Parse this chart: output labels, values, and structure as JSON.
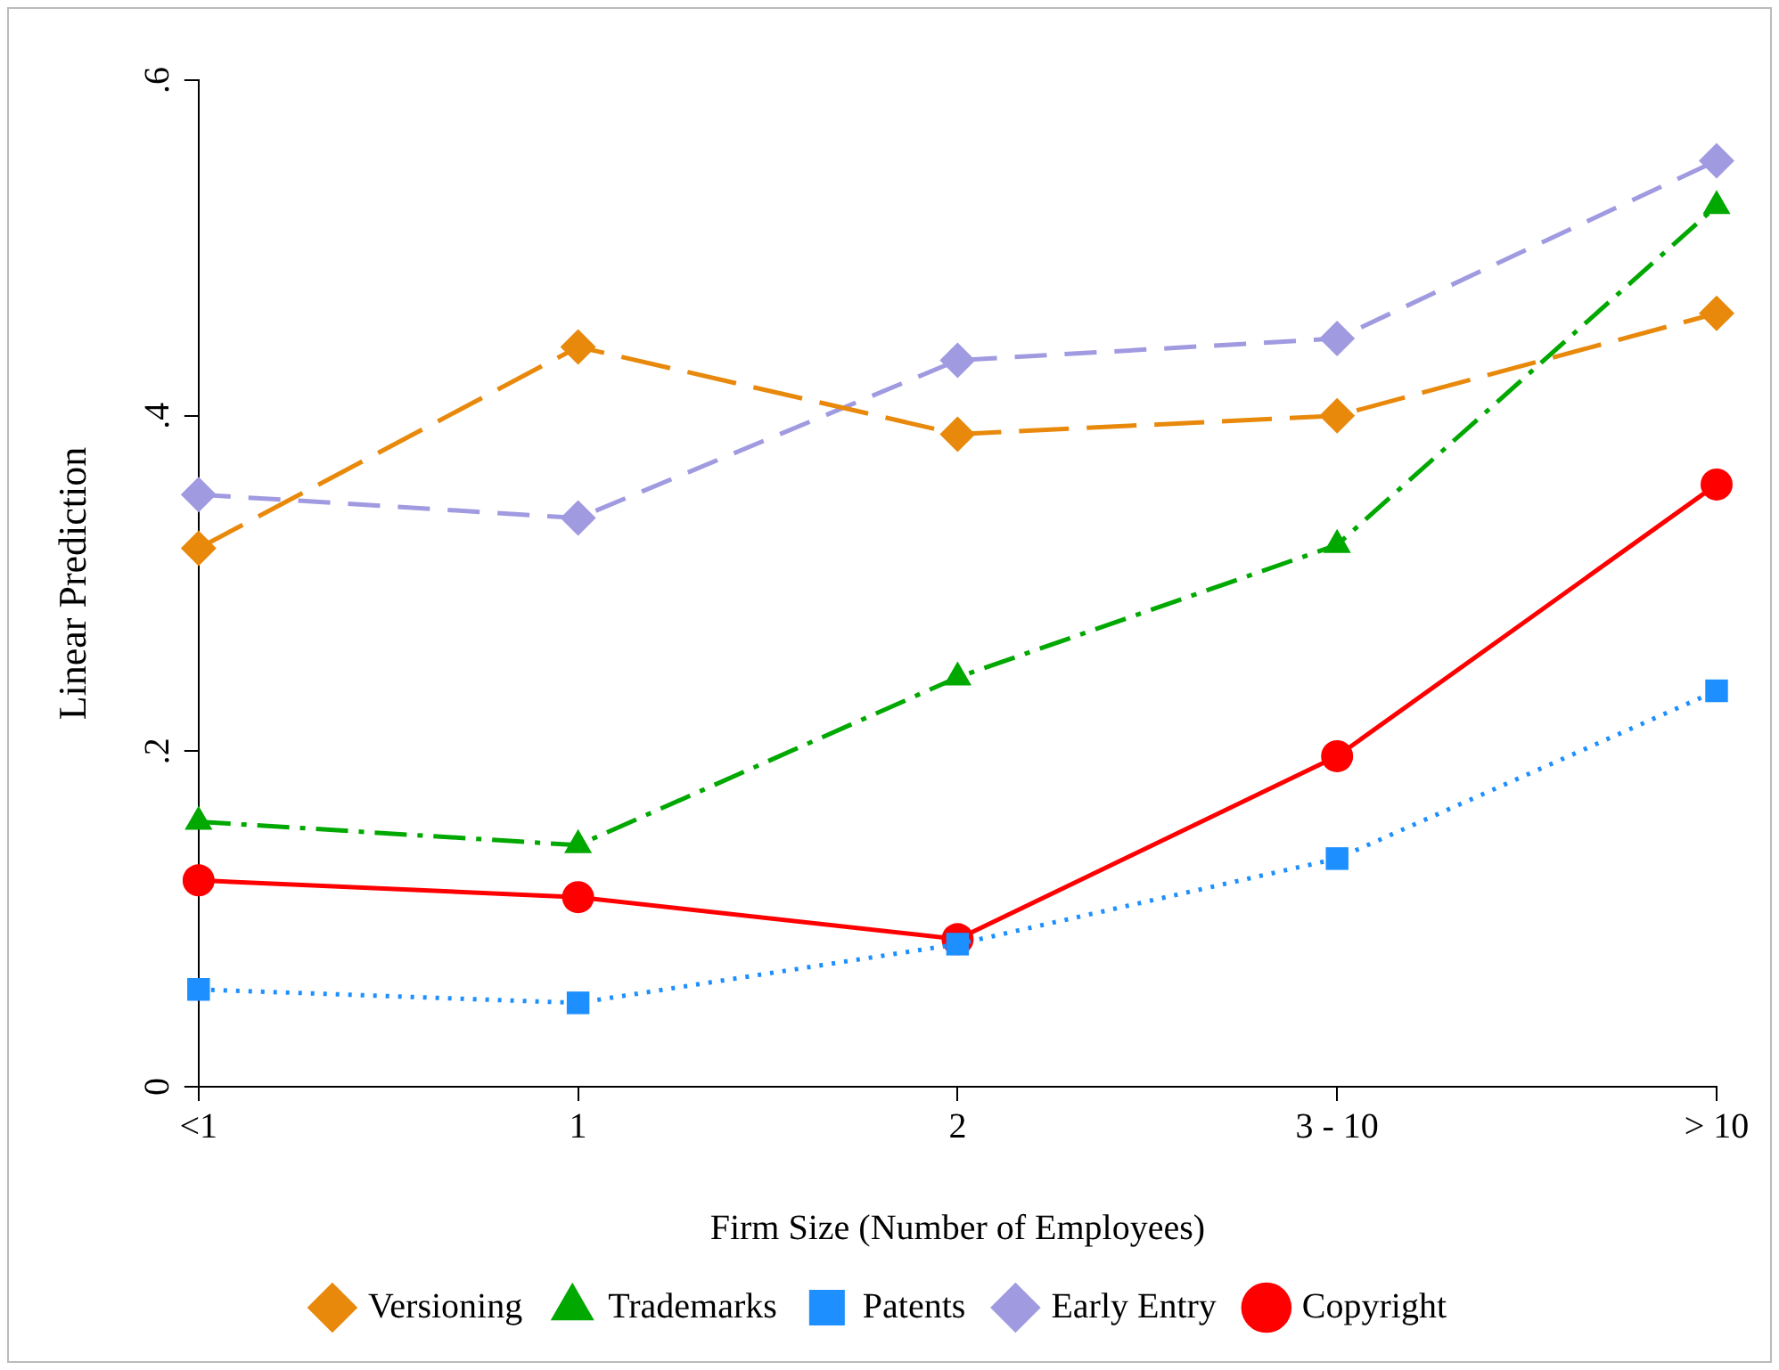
{
  "chart_data": {
    "type": "line",
    "xlabel": "Firm Size (Number of Employees)",
    "ylabel": "Linear Prediction",
    "categories": [
      "<1",
      "1",
      "2",
      "3 - 10",
      "> 10"
    ],
    "ylim": [
      0,
      0.6
    ],
    "yticks": [
      {
        "value": 0,
        "label": "0"
      },
      {
        "value": 0.2,
        "label": ".2"
      },
      {
        "value": 0.4,
        "label": ".4"
      },
      {
        "value": 0.6,
        "label": ".6"
      }
    ],
    "grid": false,
    "legend": "bottom",
    "series": [
      {
        "name": "Copyright",
        "color": "#ff0000",
        "marker": "circle",
        "line_style": "solid",
        "values": [
          0.123,
          0.113,
          0.088,
          0.197,
          0.359
        ]
      },
      {
        "name": "Early Entry",
        "color": "#a09ae0",
        "marker": "diamond",
        "line_style": "dashed",
        "values": [
          0.353,
          0.339,
          0.433,
          0.446,
          0.552
        ]
      },
      {
        "name": "Patents",
        "color": "#1e8fff",
        "marker": "square",
        "line_style": "dotted",
        "values": [
          0.058,
          0.05,
          0.085,
          0.136,
          0.236
        ]
      },
      {
        "name": "Trademarks",
        "color": "#00a800",
        "marker": "triangle",
        "line_style": "dashdot",
        "values": [
          0.158,
          0.144,
          0.244,
          0.323,
          0.525
        ]
      },
      {
        "name": "Versioning",
        "color": "#e8890c",
        "marker": "diamond",
        "line_style": "longdash",
        "values": [
          0.321,
          0.441,
          0.389,
          0.4,
          0.461
        ]
      }
    ]
  }
}
